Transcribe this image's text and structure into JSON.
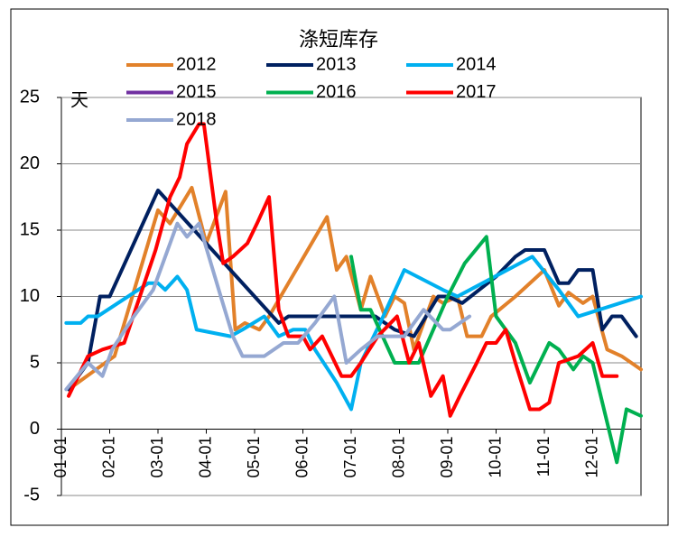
{
  "chart_data": {
    "type": "line",
    "title": "涤短库存",
    "y_label": "天",
    "xlim": [
      0,
      12
    ],
    "ylim": [
      -5,
      25
    ],
    "xticks": [
      {
        "value": 0,
        "label": "01-01"
      },
      {
        "value": 1,
        "label": "02-01"
      },
      {
        "value": 2,
        "label": "03-01"
      },
      {
        "value": 3,
        "label": "04-01"
      },
      {
        "value": 4,
        "label": "05-01"
      },
      {
        "value": 5,
        "label": "06-01"
      },
      {
        "value": 6,
        "label": "07-01"
      },
      {
        "value": 7,
        "label": "08-01"
      },
      {
        "value": 8,
        "label": "09-01"
      },
      {
        "value": 9,
        "label": "10-01"
      },
      {
        "value": 10,
        "label": "11-01"
      },
      {
        "value": 11,
        "label": "12-01"
      }
    ],
    "yticks": [
      -5,
      0,
      5,
      10,
      15,
      20,
      25
    ],
    "grid": true,
    "legend": "top",
    "series": [
      {
        "name": "2012",
        "color": "#E2812A",
        "x": [
          0.15,
          1.1,
          2.0,
          2.25,
          2.7,
          3.0,
          3.4,
          3.6,
          3.8,
          4.1,
          4.3,
          5.5,
          5.7,
          5.9,
          6.2,
          6.4,
          6.7,
          6.9,
          7.1,
          7.3,
          7.7,
          7.9,
          8.2,
          8.4,
          8.7,
          8.9,
          9.4,
          10.0,
          10.3,
          10.5,
          10.8,
          11.0,
          11.3,
          11.6,
          12.0
        ],
        "values": [
          3,
          5.5,
          16.5,
          15.5,
          18.2,
          14,
          17.9,
          7.5,
          8,
          7.5,
          8.5,
          16,
          12,
          13,
          9,
          11.5,
          8.5,
          10,
          9.5,
          6,
          10,
          9.5,
          10,
          7,
          7,
          8.5,
          10,
          12,
          9.3,
          10.3,
          9.5,
          10,
          6,
          5.5,
          4.5
        ]
      },
      {
        "name": "2013",
        "color": "#002060",
        "x": [
          0.15,
          0.55,
          0.8,
          1.0,
          2.0,
          4.5,
          4.7,
          6.5,
          6.9,
          7.3,
          7.8,
          8.0,
          8.3,
          9.0,
          9.4,
          9.6,
          10.0,
          10.3,
          10.5,
          10.7,
          11.0,
          11.2,
          11.4,
          11.6,
          11.9
        ],
        "values": [
          3,
          5,
          10,
          10,
          18,
          8,
          8.5,
          8.5,
          7.5,
          7,
          10,
          10,
          9.5,
          11.5,
          13,
          13.5,
          13.5,
          11,
          11,
          12,
          12,
          7.5,
          8.5,
          8.5,
          7
        ]
      },
      {
        "name": "2014",
        "color": "#00B0F0",
        "x": [
          0.1,
          0.4,
          0.55,
          0.75,
          1.8,
          2.0,
          2.15,
          2.4,
          2.6,
          2.8,
          3.5,
          3.75,
          4.2,
          4.5,
          4.8,
          5.05,
          5.25,
          5.7,
          6.0,
          6.2,
          6.6,
          6.85,
          7.1,
          7.9,
          8.2,
          9.75,
          10.3,
          10.7,
          12.0
        ],
        "values": [
          8,
          8,
          8.5,
          8.5,
          11,
          11,
          10.5,
          11.5,
          10.5,
          7.5,
          7,
          7.5,
          8.5,
          7,
          7.5,
          7.5,
          6,
          3.5,
          1.5,
          5,
          8,
          10,
          12,
          10.5,
          10,
          13,
          10.5,
          8.5,
          10
        ]
      },
      {
        "name": "2015",
        "color": "#7030A0",
        "x": [],
        "values": []
      },
      {
        "name": "2016",
        "color": "#00B050",
        "x": [
          6.0,
          6.2,
          6.4,
          6.9,
          7.4,
          8.0,
          8.35,
          8.8,
          9.0,
          9.4,
          9.7,
          10.1,
          10.3,
          10.6,
          10.8,
          11.0,
          11.5,
          11.7,
          12.0
        ],
        "values": [
          13,
          9,
          9,
          5,
          5,
          10,
          12.5,
          14.5,
          8.5,
          6.5,
          3.5,
          6.5,
          6,
          4.5,
          5.5,
          5,
          -2.5,
          1.5,
          1
        ]
      },
      {
        "name": "2017",
        "color": "#FF0000",
        "x": [
          0.15,
          0.55,
          0.85,
          1.3,
          1.95,
          2.25,
          2.45,
          2.6,
          2.85,
          2.95,
          3.2,
          3.35,
          3.55,
          3.85,
          4.05,
          4.3,
          4.5,
          4.7,
          5.0,
          5.15,
          5.4,
          5.6,
          5.8,
          6.0,
          6.2,
          6.55,
          6.95,
          7.2,
          7.4,
          7.65,
          7.9,
          8.05,
          8.25,
          8.6,
          8.8,
          9.0,
          9.2,
          9.4,
          9.7,
          9.9,
          10.1,
          10.3,
          10.7,
          11.0,
          11.2,
          11.5
        ],
        "values": [
          2.5,
          5.5,
          6,
          6.5,
          13.5,
          17.5,
          19,
          21.5,
          23,
          23,
          16,
          12.5,
          13,
          14,
          15.5,
          17.5,
          9,
          7,
          7,
          6,
          7,
          5.5,
          4,
          4,
          5,
          7,
          8.5,
          5,
          6.5,
          2.5,
          4,
          1,
          2.5,
          5,
          6.5,
          6.5,
          7.5,
          5,
          1.5,
          1.5,
          2,
          5,
          5.5,
          6.5,
          4,
          4
        ]
      },
      {
        "name": "2018",
        "color": "#95A8D2",
        "x": [
          0.1,
          0.55,
          0.85,
          1.05,
          1.5,
          1.9,
          2.4,
          2.6,
          2.85,
          3.3,
          3.55,
          3.75,
          4.2,
          4.6,
          4.9,
          5.25,
          5.65,
          5.9,
          6.2,
          6.55,
          6.85,
          7.1,
          7.5,
          7.9,
          8.05,
          8.45
        ],
        "values": [
          3,
          5,
          4,
          6,
          8.5,
          10.5,
          15.5,
          14.5,
          15.5,
          10,
          7,
          5.5,
          5.5,
          6.5,
          6.5,
          8,
          10,
          5,
          6,
          7,
          7,
          7,
          9,
          7.5,
          7.5,
          8.5
        ]
      }
    ]
  }
}
